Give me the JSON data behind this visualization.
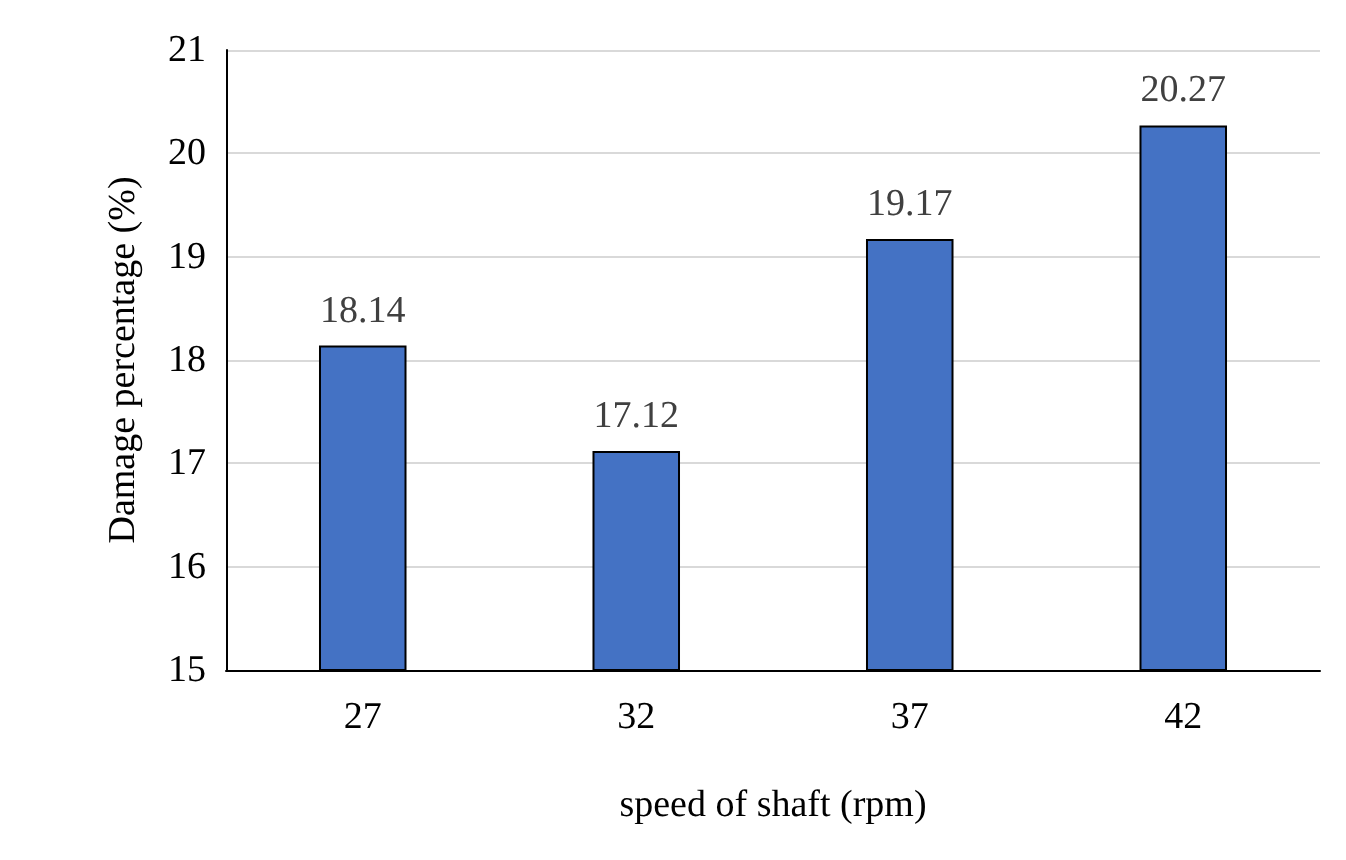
{
  "chart_data": {
    "type": "bar",
    "xlabel": "speed of shaft (rpm)",
    "ylabel": "Damage percentage (%)",
    "categories": [
      "27",
      "32",
      "37",
      "42"
    ],
    "values": [
      18.14,
      17.12,
      19.17,
      20.27
    ],
    "color": "#4472c4",
    "ylim": [
      15,
      21
    ],
    "yticks": [
      15,
      16,
      17,
      18,
      19,
      20,
      21
    ],
    "grid": "y",
    "data_labels": true
  }
}
